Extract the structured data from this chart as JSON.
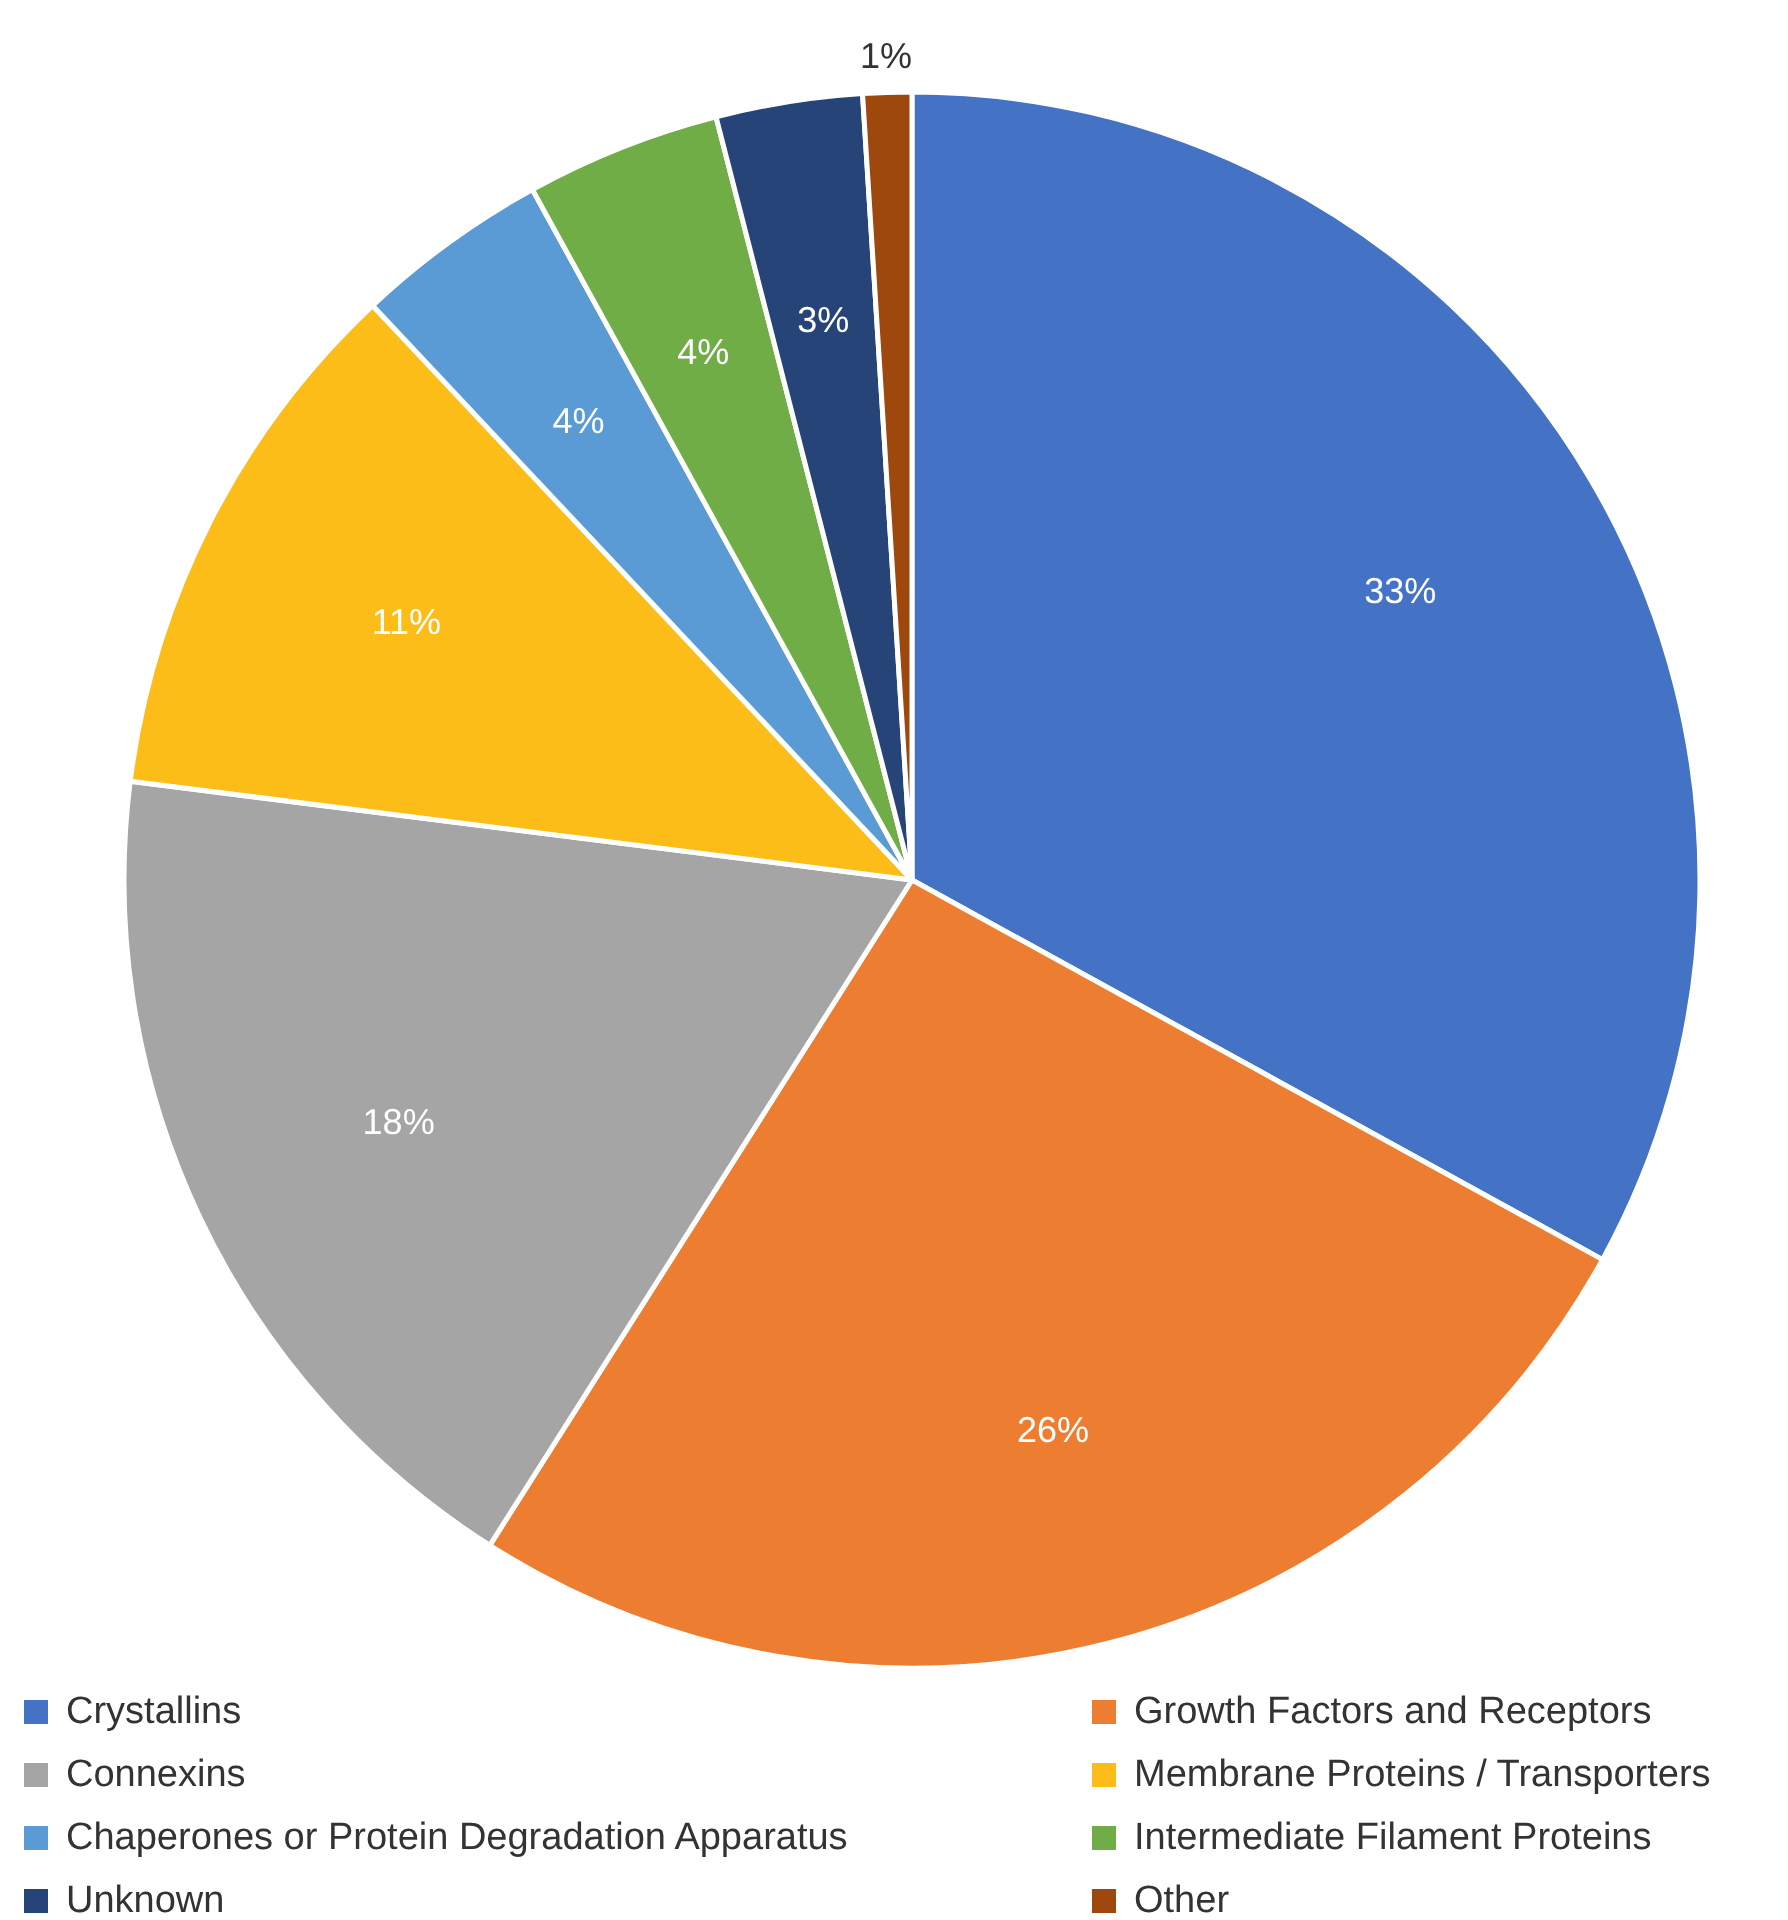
{
  "chart_data": {
    "type": "pie",
    "categories": [
      "Crystallins",
      "Growth Factors and Receptors",
      "Connexins",
      "Membrane Proteins / Transporters",
      "Chaperones or Protein Degradation Apparatus",
      "Intermediate Filament Proteins",
      "Unknown",
      "Other"
    ],
    "values": [
      33,
      26,
      18,
      11,
      4,
      4,
      3,
      1
    ],
    "colors": [
      "#4472c4",
      "#ed7d31",
      "#a5a5a5",
      "#fdbd19",
      "#5b9bd5",
      "#70ad47",
      "#264478",
      "#9e480e"
    ],
    "value_labels": [
      "33%",
      "26%",
      "18%",
      "11%",
      "4%",
      "4%",
      "3%",
      "1%"
    ],
    "legend": "bottom"
  }
}
